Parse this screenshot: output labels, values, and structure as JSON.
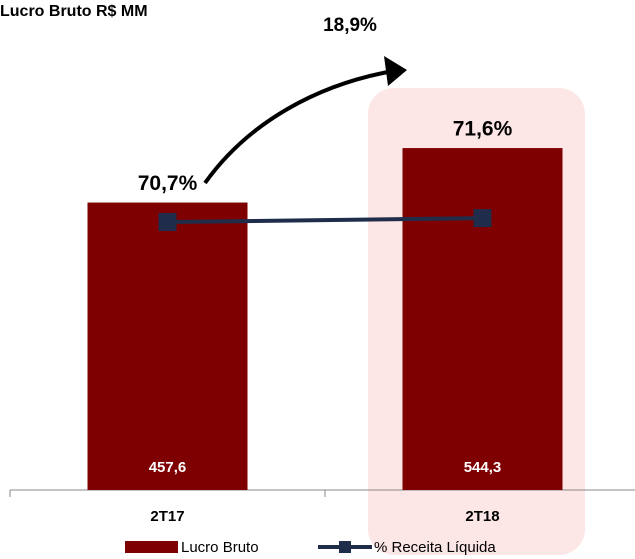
{
  "chart_data": {
    "type": "bar",
    "title": "Lucro Bruto R$ MM",
    "annotation": "18,9%",
    "categories": [
      "2T17",
      "2T18"
    ],
    "series": [
      {
        "name": "Lucro Bruto",
        "type": "bar",
        "color": "#7f0000",
        "values": [
          457.6,
          544.3
        ],
        "value_labels": [
          "457,6",
          "544,3"
        ]
      },
      {
        "name": "% Receita Líquida",
        "type": "line",
        "axis": "y2",
        "color": "#1f2d4a",
        "values": [
          70.7,
          71.6
        ],
        "value_labels": [
          "70,7%",
          "71,6%"
        ]
      }
    ],
    "ylim": [
      0,
      780
    ],
    "y2lim": [
      10,
      121
    ],
    "highlight_color": "#fde6e6"
  }
}
